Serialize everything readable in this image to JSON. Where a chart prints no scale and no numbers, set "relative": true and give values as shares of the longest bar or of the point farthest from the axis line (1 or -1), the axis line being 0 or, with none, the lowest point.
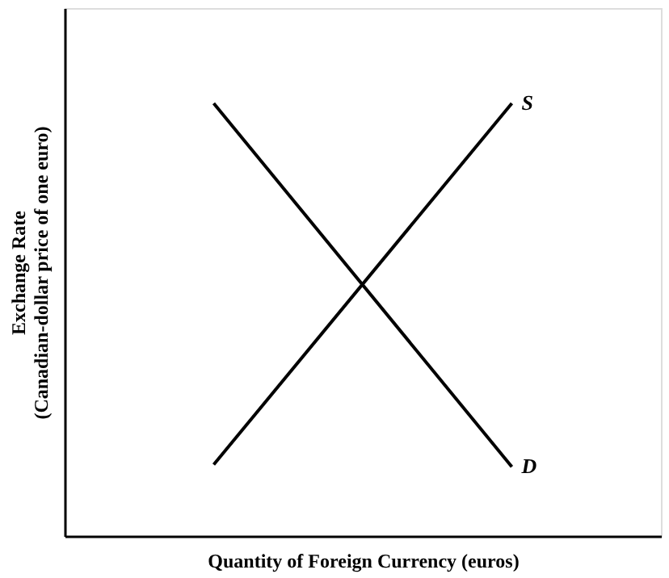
{
  "chart_data": {
    "type": "line",
    "relative": true,
    "xlabel": "Quantity of Foreign Currency (euros)",
    "ylabel": "Exchange Rate\n(Canadian-dollar price of one euro)",
    "categories": [
      null,
      null
    ],
    "series": [
      {
        "name": "S",
        "color": "#000000",
        "values": [
          0.165,
          1
        ]
      },
      {
        "name": "D",
        "color": "#000000",
        "values": [
          1,
          0.16
        ]
      }
    ]
  }
}
